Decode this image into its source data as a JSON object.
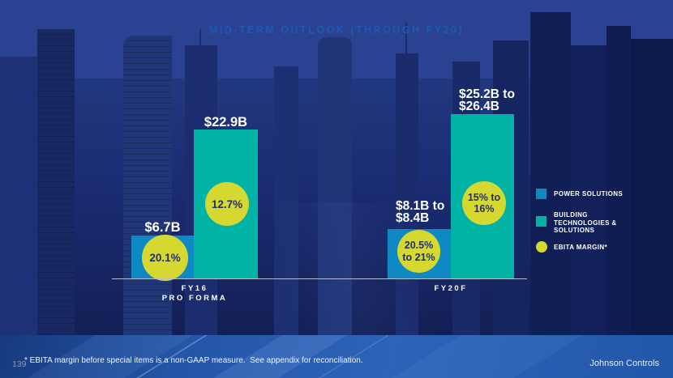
{
  "slide": {
    "title": "MID-TERM OUTLOOK (THROUGH FY20)"
  },
  "chart": {
    "axis": {
      "fy16_line1": "FY16",
      "fy16_line2": "PRO FORMA",
      "fy20": "FY20F"
    },
    "bars": {
      "fy16_power": {
        "value_label": "$6.7B"
      },
      "fy16_bts": {
        "value_label": "$22.9B"
      },
      "fy20_power": {
        "value_label_line1": "$8.1B to",
        "value_label_line2": "$8.4B"
      },
      "fy20_bts": {
        "value_label_line1": "$25.2B to",
        "value_label_line2": "$26.4B"
      }
    },
    "margins": {
      "fy16_power": "20.1%",
      "fy16_bts": "12.7%",
      "fy20_power_line1": "20.5%",
      "fy20_power_line2": "to 21%",
      "fy20_bts_line1": "15% to",
      "fy20_bts_line2": "16%"
    }
  },
  "chart_data": {
    "type": "bar",
    "title": "MID-TERM OUTLOOK (THROUGH FY20)",
    "categories": [
      "FY16 PRO FORMA",
      "FY20F"
    ],
    "unit": "USD billions",
    "series": [
      {
        "name": "POWER SOLUTIONS",
        "color": "#0f89c4",
        "values": [
          6.7,
          8.25
        ],
        "value_labels": [
          "$6.7B",
          "$8.1B to $8.4B"
        ]
      },
      {
        "name": "BUILDING TECHNOLOGIES & SOLUTIONS",
        "color": "#00b3a4",
        "values": [
          22.9,
          25.8
        ],
        "value_labels": [
          "$22.9B",
          "$25.2B to $26.4B"
        ]
      }
    ],
    "markers": {
      "name": "EBITA MARGIN*",
      "color": "#d6d832",
      "values": [
        {
          "category": "FY16 PRO FORMA",
          "power_solutions": "20.1%",
          "building_technologies_solutions": "12.7%"
        },
        {
          "category": "FY20F",
          "power_solutions": "20.5% to 21%",
          "building_technologies_solutions": "15% to 16%"
        }
      ]
    },
    "legend_position": "right",
    "grid": false,
    "ylim": [
      0,
      27
    ]
  },
  "legend": {
    "power": "POWER SOLUTIONS",
    "bts_line1": "BUILDING",
    "bts_line2": "TECHNOLOGIES &",
    "bts_line3": "SOLUTIONS",
    "ebita": "EBITA MARGIN*"
  },
  "footer": {
    "page_number": "139",
    "footnote": "* EBITA margin before special items is a non-GAAP measure.  See appendix for reconciliation.",
    "brand": "Johnson Controls"
  },
  "colors": {
    "power_solutions": "#0f89c4",
    "building_technologies_solutions": "#00b3a4",
    "ebita_margin": "#d6d832",
    "slide_background": "#1a2b72",
    "top_band": "#2a4291",
    "title_text": "#1d5ab0"
  }
}
